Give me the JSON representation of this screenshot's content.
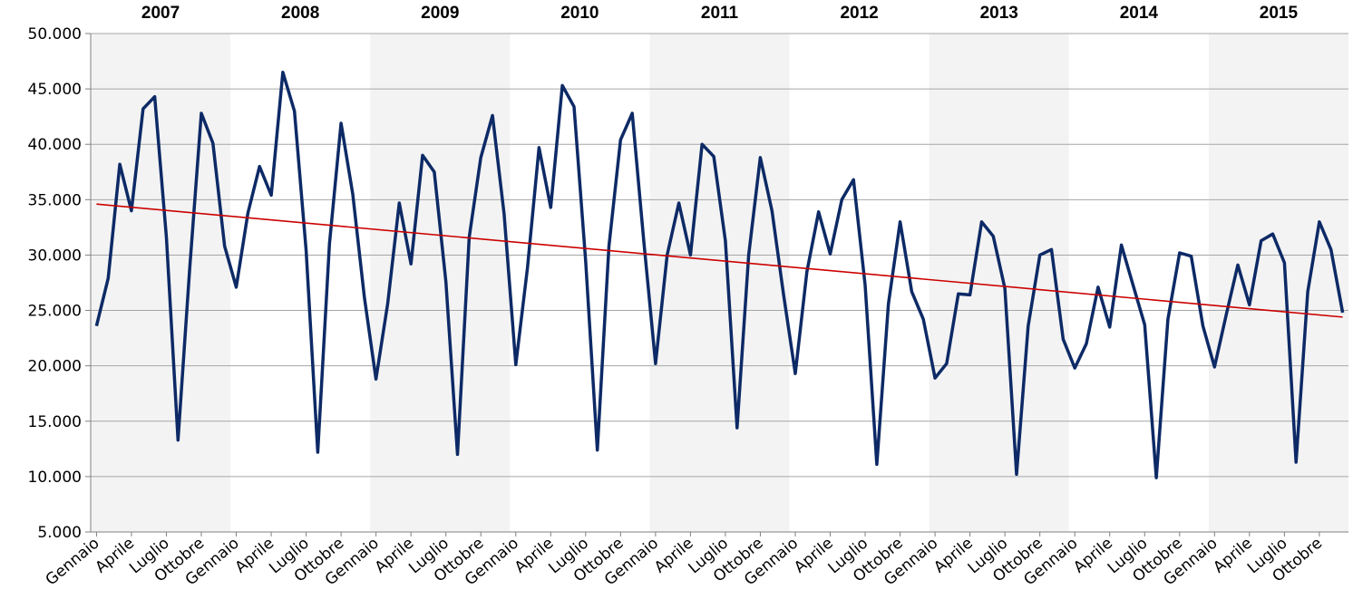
{
  "chart_data": {
    "type": "line",
    "years": [
      "2007",
      "2008",
      "2009",
      "2010",
      "2011",
      "2012",
      "2013",
      "2014",
      "2015"
    ],
    "categories": [
      "Gennaio",
      null,
      null,
      "Aprile",
      null,
      null,
      "Luglio",
      null,
      null,
      "Ottobre",
      null,
      null,
      "Gennaio",
      null,
      null,
      "Aprile",
      null,
      null,
      "Luglio",
      null,
      null,
      "Ottobre",
      null,
      null,
      "Gennaio",
      null,
      null,
      "Aprile",
      null,
      null,
      "Luglio",
      null,
      null,
      "Ottobre",
      null,
      null,
      "Gennaio",
      null,
      null,
      "Aprile",
      null,
      null,
      "Luglio",
      null,
      null,
      "Ottobre",
      null,
      null,
      "Gennaio",
      null,
      null,
      "Aprile",
      null,
      null,
      "Luglio",
      null,
      null,
      "Ottobre",
      null,
      null,
      "Gennaio",
      null,
      null,
      "Aprile",
      null,
      null,
      "Luglio",
      null,
      null,
      "Ottobre",
      null,
      null,
      "Gennaio",
      null,
      null,
      "Aprile",
      null,
      null,
      "Luglio",
      null,
      null,
      "Ottobre",
      null,
      null,
      "Gennaio",
      null,
      null,
      "Aprile",
      null,
      null,
      "Luglio",
      null,
      null,
      "Ottobre",
      null,
      null,
      "Gennaio",
      null,
      null,
      "Aprile",
      null,
      null,
      "Luglio",
      null,
      null,
      "Ottobre",
      null,
      null
    ],
    "series": [
      {
        "color": "#0d2a66",
        "values": [
          23600,
          27900,
          38200,
          34000,
          43200,
          44300,
          31600,
          13300,
          28800,
          42800,
          40100,
          30800,
          27100,
          33800,
          38000,
          35400,
          46500,
          43000,
          30400,
          12200,
          31000,
          41900,
          35500,
          26200,
          18800,
          25600,
          34700,
          29200,
          39000,
          37500,
          27600,
          12000,
          31600,
          38800,
          42600,
          33700,
          20100,
          28800,
          39700,
          34300,
          45300,
          43400,
          29500,
          12400,
          30800,
          40400,
          42800,
          31200,
          20200,
          30000,
          34700,
          30000,
          40000,
          38900,
          31300,
          14400,
          30000,
          38800,
          34000,
          26400,
          19300,
          28500,
          33900,
          30100,
          35000,
          36800,
          27300,
          11100,
          25600,
          33000,
          26700,
          24200,
          18900,
          20200,
          26500,
          26400,
          33000,
          31700,
          27000,
          10200,
          23600,
          30000,
          30500,
          22400,
          19800,
          22000,
          27100,
          23500,
          30900,
          27300,
          23700,
          9900,
          24200,
          30200,
          29900,
          23600,
          19900,
          24600,
          29100,
          25500,
          31300,
          31900,
          29300,
          11300,
          26700,
          33000,
          30500,
          24800
        ]
      }
    ],
    "trend": {
      "color": "#cc0000",
      "values": [
        34600,
        24400
      ]
    },
    "ylim": [
      5000,
      50000
    ],
    "yticks": [
      {
        "value": 5000,
        "label": "5.000"
      },
      {
        "value": 10000,
        "label": "10.000"
      },
      {
        "value": 15000,
        "label": "15.000"
      },
      {
        "value": 20000,
        "label": "20.000"
      },
      {
        "value": 25000,
        "label": "25.000"
      },
      {
        "value": 30000,
        "label": "30.000"
      },
      {
        "value": 35000,
        "label": "35.000"
      },
      {
        "value": 40000,
        "label": "40.000"
      },
      {
        "value": 45000,
        "label": "45.000"
      },
      {
        "value": 50000,
        "label": "50.000"
      }
    ],
    "grid": true
  }
}
